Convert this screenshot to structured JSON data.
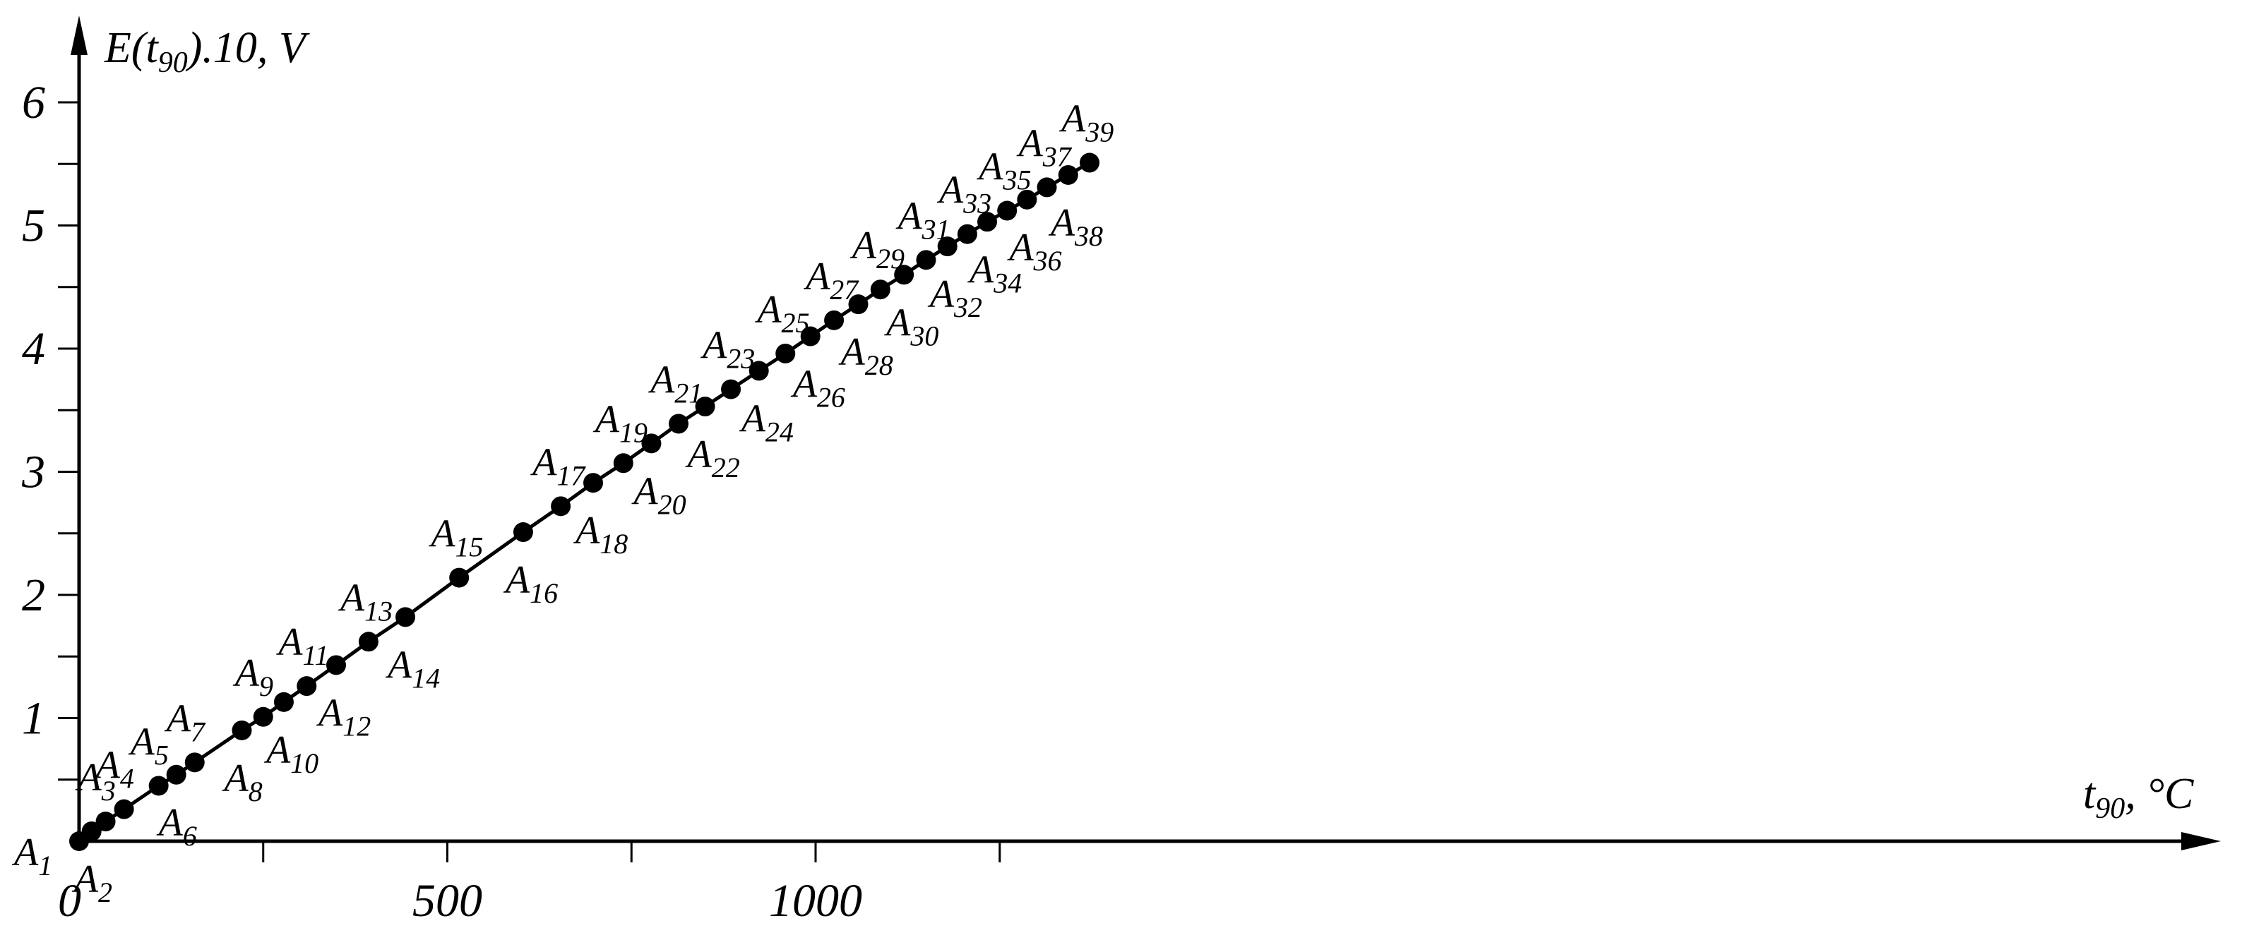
{
  "chart_data": {
    "type": "line",
    "xlabel": "t90, °C",
    "ylabel": "E(t90).10, V",
    "xlabel_parts": {
      "main": "t",
      "sub": "90",
      "rest": ", °C"
    },
    "ylabel_parts": {
      "pre": "E(t",
      "sub": "90",
      "rest": ").10, V"
    },
    "origin_label": "0",
    "xlim": [
      0,
      1450
    ],
    "ylim": [
      0,
      6.5
    ],
    "x_ticks": [
      250,
      500,
      750,
      1000,
      1250
    ],
    "x_tick_labels": [
      {
        "value": 500,
        "text": "500"
      },
      {
        "value": 1000,
        "text": "1000"
      }
    ],
    "y_ticks": [
      0.5,
      1,
      1.5,
      2,
      2.5,
      3,
      3.5,
      4,
      4.5,
      5,
      5.5,
      6
    ],
    "y_tick_labels": [
      {
        "value": 1,
        "text": "1"
      },
      {
        "value": 2,
        "text": "2"
      },
      {
        "value": 3,
        "text": "3"
      },
      {
        "value": 4,
        "text": "4"
      },
      {
        "value": 5,
        "text": "5"
      },
      {
        "value": 6,
        "text": "6"
      }
    ],
    "grid": false,
    "legend": "none",
    "points": [
      {
        "label": "A",
        "sub": "1",
        "x": 0,
        "y": 0.0,
        "side": "below-left"
      },
      {
        "label": "A",
        "sub": "2",
        "x": 17,
        "y": 0.08,
        "side": "below"
      },
      {
        "label": "A",
        "sub": "3",
        "x": 36,
        "y": 0.16,
        "side": "above"
      },
      {
        "label": "A",
        "sub": "4",
        "x": 61,
        "y": 0.26,
        "side": "above"
      },
      {
        "label": "A",
        "sub": "5",
        "x": 108,
        "y": 0.45,
        "side": "above"
      },
      {
        "label": "A",
        "sub": "6",
        "x": 132,
        "y": 0.54,
        "side": "below"
      },
      {
        "label": "A",
        "sub": "7",
        "x": 157,
        "y": 0.64,
        "side": "above"
      },
      {
        "label": "A",
        "sub": "8",
        "x": 221,
        "y": 0.9,
        "side": "below"
      },
      {
        "label": "A",
        "sub": "9",
        "x": 250,
        "y": 1.01,
        "side": "above"
      },
      {
        "label": "A",
        "sub": "10",
        "x": 278,
        "y": 1.13,
        "side": "below"
      },
      {
        "label": "A",
        "sub": "11",
        "x": 309,
        "y": 1.26,
        "side": "above"
      },
      {
        "label": "A",
        "sub": "12",
        "x": 349,
        "y": 1.43,
        "side": "below"
      },
      {
        "label": "A",
        "sub": "13",
        "x": 393,
        "y": 1.62,
        "side": "above"
      },
      {
        "label": "A",
        "sub": "14",
        "x": 443,
        "y": 1.82,
        "side": "below"
      },
      {
        "label": "A",
        "sub": "15",
        "x": 516,
        "y": 2.14,
        "side": "above"
      },
      {
        "label": "A",
        "sub": "16",
        "x": 603,
        "y": 2.51,
        "side": "below"
      },
      {
        "label": "A",
        "sub": "17",
        "x": 654,
        "y": 2.72,
        "side": "above"
      },
      {
        "label": "A",
        "sub": "18",
        "x": 698,
        "y": 2.91,
        "side": "below"
      },
      {
        "label": "A",
        "sub": "19",
        "x": 739,
        "y": 3.07,
        "side": "above"
      },
      {
        "label": "A",
        "sub": "20",
        "x": 777,
        "y": 3.23,
        "side": "below"
      },
      {
        "label": "A",
        "sub": "21",
        "x": 814,
        "y": 3.39,
        "side": "above"
      },
      {
        "label": "A",
        "sub": "22",
        "x": 850,
        "y": 3.53,
        "side": "below"
      },
      {
        "label": "A",
        "sub": "23",
        "x": 885,
        "y": 3.67,
        "side": "above"
      },
      {
        "label": "A",
        "sub": "24",
        "x": 923,
        "y": 3.82,
        "side": "below"
      },
      {
        "label": "A",
        "sub": "25",
        "x": 959,
        "y": 3.96,
        "side": "above"
      },
      {
        "label": "A",
        "sub": "26",
        "x": 993,
        "y": 4.1,
        "side": "below"
      },
      {
        "label": "A",
        "sub": "27",
        "x": 1025,
        "y": 4.23,
        "side": "above"
      },
      {
        "label": "A",
        "sub": "28",
        "x": 1058,
        "y": 4.36,
        "side": "below"
      },
      {
        "label": "A",
        "sub": "29",
        "x": 1088,
        "y": 4.48,
        "side": "above"
      },
      {
        "label": "A",
        "sub": "30",
        "x": 1120,
        "y": 4.6,
        "side": "below"
      },
      {
        "label": "A",
        "sub": "31",
        "x": 1150,
        "y": 4.72,
        "side": "above"
      },
      {
        "label": "A",
        "sub": "32",
        "x": 1179,
        "y": 4.83,
        "side": "below"
      },
      {
        "label": "A",
        "sub": "33",
        "x": 1206,
        "y": 4.93,
        "side": "above"
      },
      {
        "label": "A",
        "sub": "34",
        "x": 1233,
        "y": 5.03,
        "side": "below"
      },
      {
        "label": "A",
        "sub": "35",
        "x": 1260,
        "y": 5.12,
        "side": "above"
      },
      {
        "label": "A",
        "sub": "36",
        "x": 1287,
        "y": 5.21,
        "side": "below"
      },
      {
        "label": "A",
        "sub": "37",
        "x": 1314,
        "y": 5.31,
        "side": "above"
      },
      {
        "label": "A",
        "sub": "38",
        "x": 1343,
        "y": 5.41,
        "side": "below"
      },
      {
        "label": "A",
        "sub": "39",
        "x": 1372,
        "y": 5.51,
        "side": "above"
      }
    ]
  }
}
